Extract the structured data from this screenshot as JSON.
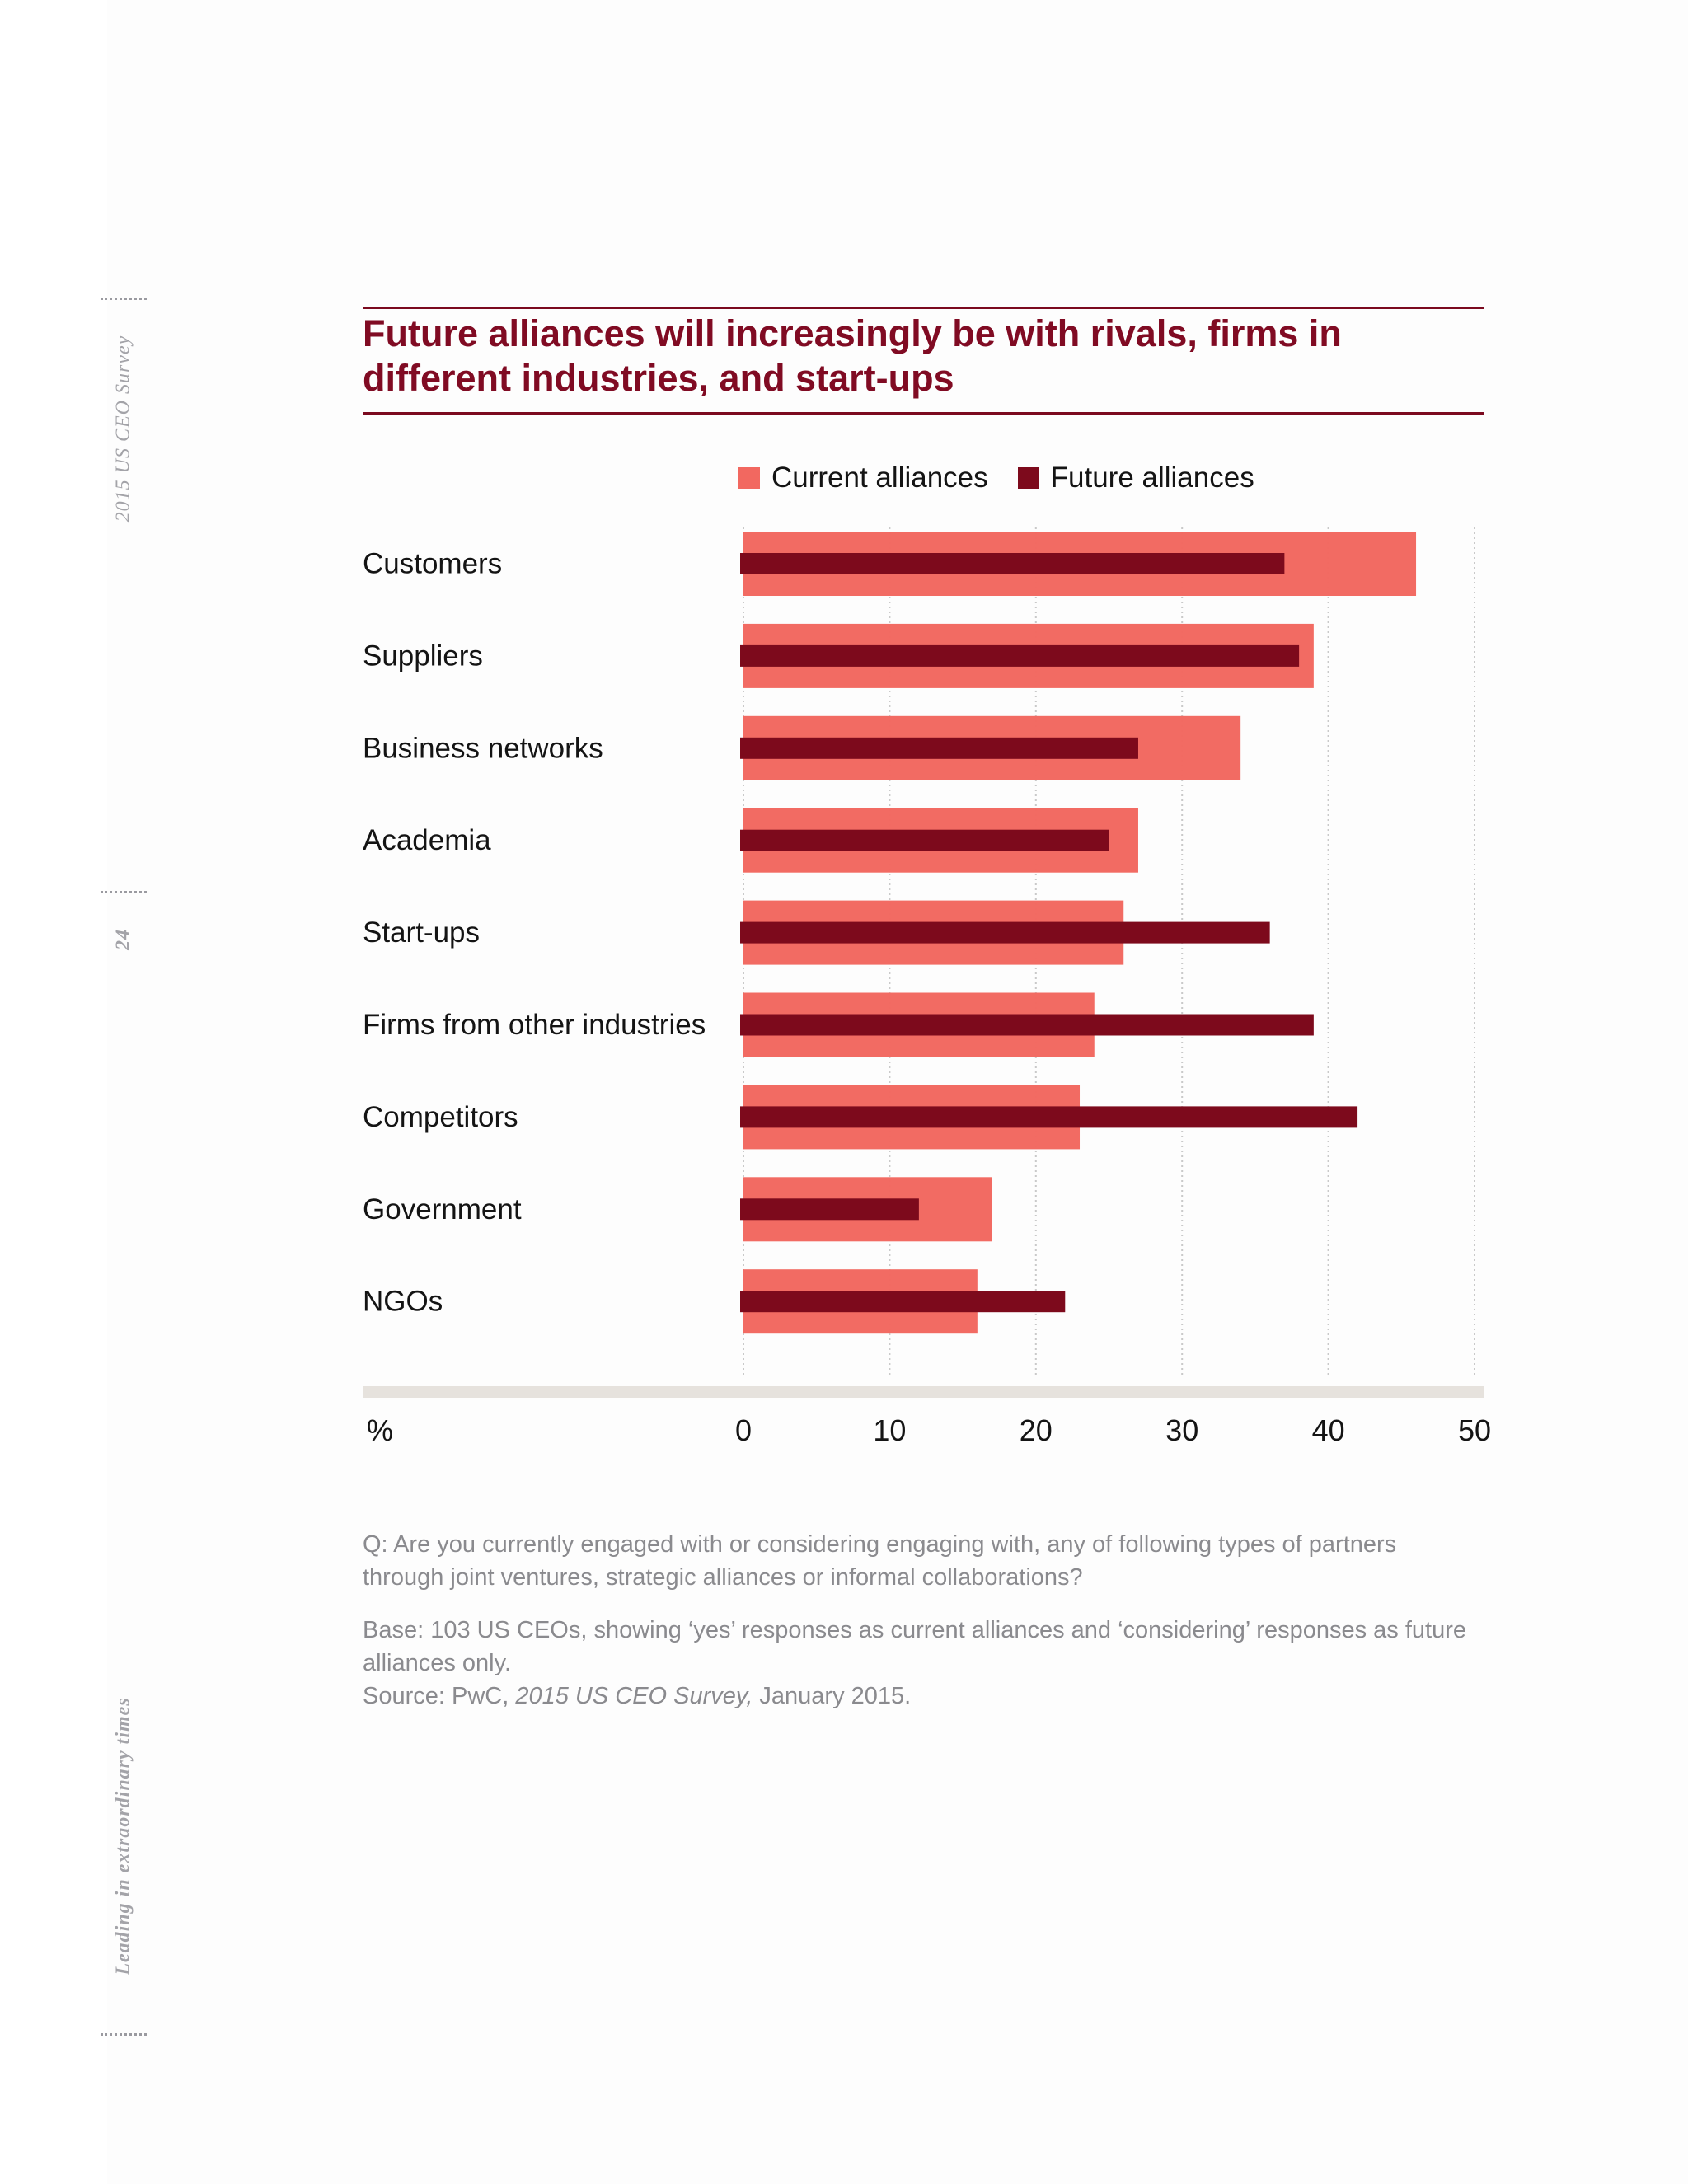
{
  "sidebar": {
    "survey_label": "2015 US CEO Survey",
    "page_number": "24",
    "report_title": "Leading in extraordinary times"
  },
  "colors": {
    "current": "#f26860",
    "future": "#7d0a1c",
    "title": "#800b23",
    "grid": "#c9c9c9",
    "axis_bar": "#e6e2dd"
  },
  "legend": {
    "current_label": "Current alliances",
    "future_label": "Future alliances"
  },
  "chart_data": {
    "type": "bar",
    "orientation": "horizontal",
    "title": "Future alliances will increasingly be with rivals, firms in different industries, and start-ups",
    "xlabel": "%",
    "xlim": [
      0,
      50
    ],
    "xticks": [
      "0",
      "10",
      "20",
      "30",
      "40",
      "50"
    ],
    "grid": true,
    "legend_position": "top",
    "categories": [
      "Customers",
      "Suppliers",
      "Business networks",
      "Academia",
      "Start-ups",
      "Firms from other industries",
      "Competitors",
      "Government",
      "NGOs"
    ],
    "series": [
      {
        "name": "Current alliances",
        "values": [
          46,
          39,
          34,
          27,
          26,
          24,
          23,
          17,
          16
        ]
      },
      {
        "name": "Future alliances",
        "values": [
          37,
          38,
          27,
          25,
          36,
          39,
          42,
          12,
          22
        ]
      }
    ]
  },
  "notes": {
    "question": "Q: Are you currently engaged with or considering engaging with, any of following types of partners through joint ventures, strategic alliances or informal collaborations?",
    "base": "Base: 103 US CEOs, showing ‘yes’ responses as current alliances and ‘considering’ responses as future alliances only.",
    "source_prefix": "Source: PwC,",
    "source_title": "2015 US CEO Survey,",
    "source_suffix": "January 2015."
  }
}
